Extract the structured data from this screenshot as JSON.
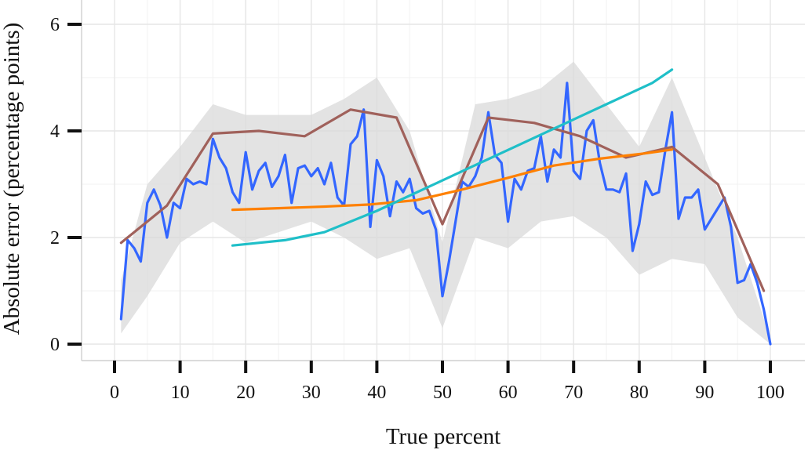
{
  "chart_data": {
    "type": "line",
    "xlabel": "True percent",
    "ylabel": "Absolute error (percentage points)",
    "xlim": [
      0,
      100
    ],
    "ylim": [
      0,
      6
    ],
    "x_ticks": [
      "0",
      "10",
      "20",
      "30",
      "40",
      "50",
      "60",
      "70",
      "80",
      "90",
      "100"
    ],
    "y_ticks": [
      "0",
      "2",
      "4",
      "6"
    ],
    "grid": true,
    "legend": "none",
    "colors": {
      "blue": "#3366ff",
      "band": "#d9d9d9",
      "brown": "#a0615b",
      "orange": "#ff8000",
      "cyan": "#1fbfc8"
    },
    "band": {
      "x": [
        1,
        5,
        10,
        15,
        20,
        25,
        30,
        35,
        40,
        45,
        50,
        55,
        60,
        65,
        70,
        75,
        80,
        85,
        90,
        95,
        100
      ],
      "lower": [
        0.2,
        0.9,
        1.9,
        2.3,
        1.9,
        2.1,
        2.3,
        2.0,
        1.6,
        1.8,
        0.3,
        2.0,
        1.8,
        2.3,
        2.4,
        2.0,
        1.3,
        1.6,
        1.5,
        0.5,
        0.0
      ],
      "upper": [
        1.2,
        3.0,
        3.7,
        4.5,
        4.3,
        4.3,
        4.3,
        4.6,
        5.0,
        4.0,
        1.9,
        4.5,
        4.6,
        4.8,
        5.3,
        4.5,
        3.7,
        5.0,
        3.5,
        2.0,
        0.1
      ]
    },
    "series": [
      {
        "x": [
          1,
          2,
          3,
          4,
          5,
          6,
          7,
          8,
          9,
          10,
          11,
          12,
          13,
          14,
          15,
          16,
          17,
          18,
          19,
          20,
          21,
          22,
          23,
          24,
          25,
          26,
          27,
          28,
          29,
          30,
          31,
          32,
          33,
          34,
          35,
          36,
          37,
          38,
          39,
          40,
          41,
          42,
          43,
          44,
          45,
          46,
          47,
          48,
          49,
          50,
          51,
          52,
          53,
          54,
          55,
          56,
          57,
          58,
          59,
          60,
          61,
          62,
          63,
          64,
          65,
          66,
          67,
          68,
          69,
          70,
          71,
          72,
          73,
          74,
          75,
          76,
          77,
          78,
          79,
          80,
          81,
          82,
          83,
          84,
          85,
          86,
          87,
          88,
          89,
          90,
          91,
          92,
          93,
          94,
          95,
          96,
          97,
          98,
          99,
          100
        ],
        "values": [
          0.47,
          1.95,
          1.8,
          1.55,
          2.65,
          2.9,
          2.6,
          2.0,
          2.65,
          2.55,
          3.1,
          3.0,
          3.05,
          3.0,
          3.85,
          3.5,
          3.3,
          2.85,
          2.65,
          3.6,
          2.9,
          3.25,
          3.4,
          2.95,
          3.15,
          3.55,
          2.65,
          3.3,
          3.35,
          3.15,
          3.3,
          3.0,
          3.4,
          2.75,
          2.6,
          3.75,
          3.9,
          4.4,
          2.2,
          3.45,
          3.15,
          2.4,
          3.05,
          2.85,
          3.1,
          2.55,
          2.45,
          2.5,
          2.15,
          0.9,
          1.55,
          2.3,
          3.05,
          2.95,
          3.15,
          3.5,
          4.35,
          3.55,
          3.4,
          2.3,
          3.1,
          2.9,
          3.25,
          3.3,
          3.9,
          3.05,
          3.65,
          3.5,
          4.9,
          3.25,
          3.1,
          4.0,
          4.2,
          3.4,
          2.9,
          2.9,
          2.85,
          3.2,
          1.75,
          2.25,
          3.05,
          2.8,
          2.85,
          3.65,
          4.35,
          2.35,
          2.75,
          2.75,
          2.9,
          2.15,
          2.35,
          2.55,
          2.75,
          2.2,
          1.15,
          1.2,
          1.5,
          1.15,
          0.65,
          0.0
        ],
        "color": "#3366ff"
      },
      {
        "x": [
          1,
          8,
          15,
          22,
          29,
          36,
          43,
          50,
          57,
          64,
          71,
          78,
          85,
          92,
          99
        ],
        "values": [
          1.9,
          2.6,
          3.95,
          4.0,
          3.9,
          4.4,
          4.25,
          2.25,
          4.25,
          4.15,
          3.9,
          3.5,
          3.7,
          3.0,
          1.0
        ],
        "color": "#a0615b"
      },
      {
        "x": [
          18,
          25,
          32,
          39,
          46,
          53,
          60,
          67,
          74,
          81,
          85
        ],
        "values": [
          2.52,
          2.55,
          2.58,
          2.62,
          2.7,
          2.9,
          3.12,
          3.35,
          3.48,
          3.58,
          3.65
        ],
        "color": "#ff8000"
      },
      {
        "x": [
          18,
          26,
          32,
          40,
          47,
          54,
          61,
          68,
          75,
          82,
          85
        ],
        "values": [
          1.85,
          1.95,
          2.1,
          2.5,
          2.9,
          3.3,
          3.7,
          4.1,
          4.5,
          4.9,
          5.15
        ],
        "color": "#1fbfc8"
      }
    ]
  }
}
